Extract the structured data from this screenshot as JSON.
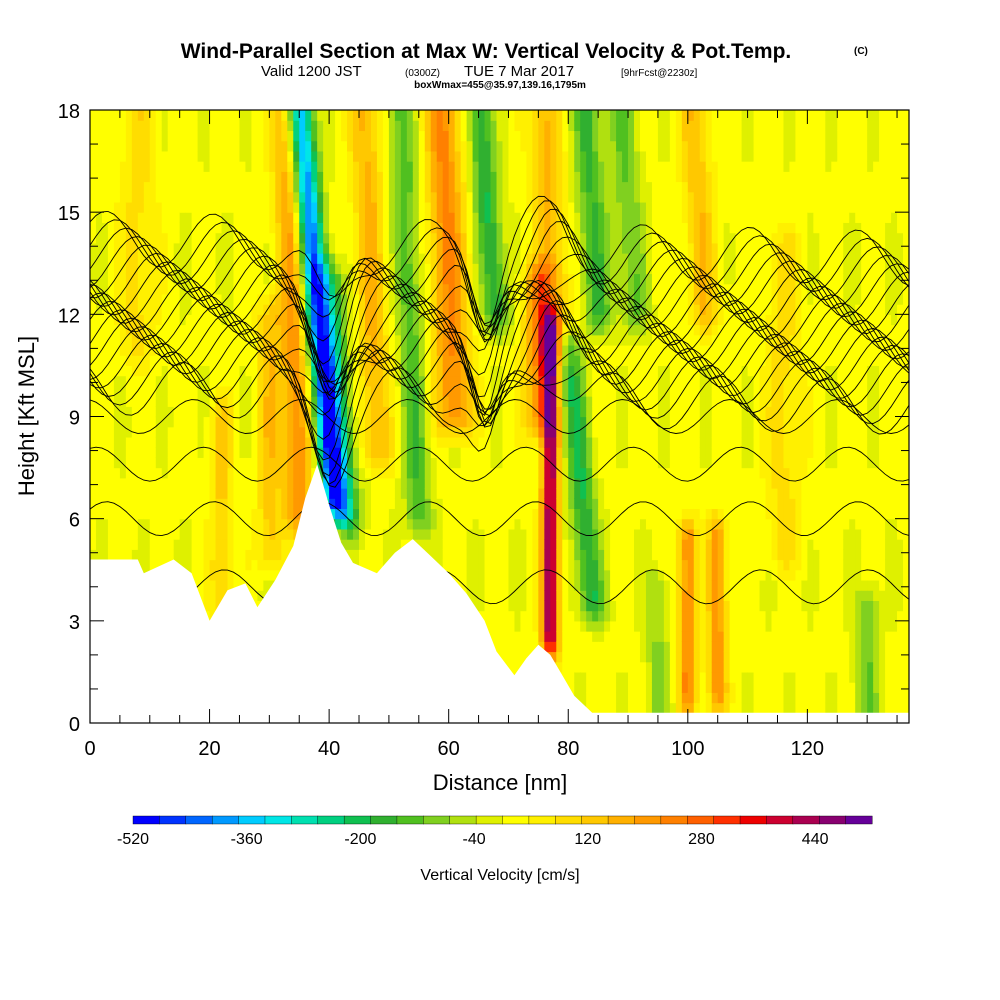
{
  "header": {
    "title": "Wind-Parallel Section at Max W: Vertical Velocity & Pot.Temp.",
    "copyright": "(C)",
    "valid_prefix": "Valid 1200 JST",
    "valid_zulu": "(0300Z)",
    "valid_date": "TUE 7 Mar 2017",
    "forecast": "[9hrFcst@2230z]",
    "box_info": "boxWmax=455@35.97,139.16,1795m"
  },
  "chart_data": {
    "type": "heatmap",
    "xlabel": "Distance [nm]",
    "ylabel": "Height [Kft MSL]",
    "xlim": [
      0,
      137
    ],
    "ylim": [
      0,
      18
    ],
    "xticks": [
      0,
      20,
      40,
      60,
      80,
      100,
      120
    ],
    "yticks": [
      0,
      3,
      6,
      9,
      12,
      15,
      18
    ],
    "colorbar": {
      "label": "Vertical Velocity [cm/s]",
      "min": -520,
      "max": 520,
      "step": 40,
      "tick_values": [
        -520,
        -360,
        -200,
        -40,
        120,
        280,
        440
      ],
      "colors": [
        "#0000ff",
        "#0033ff",
        "#0066ff",
        "#0099ff",
        "#00ccff",
        "#00e6e6",
        "#00e0b0",
        "#00d080",
        "#10c050",
        "#30b030",
        "#50c020",
        "#80d020",
        "#b0e010",
        "#dff000",
        "#ffff00",
        "#fff000",
        "#ffdd00",
        "#ffc800",
        "#ffb000",
        "#ff9900",
        "#ff8000",
        "#ff6000",
        "#ff3000",
        "#ee0000",
        "#cc0030",
        "#aa0050",
        "#880070",
        "#660099"
      ]
    },
    "terrain_top_kft": [
      [
        0,
        4.8
      ],
      [
        8,
        4.8
      ],
      [
        9,
        4.4
      ],
      [
        14,
        4.8
      ],
      [
        17,
        4.4
      ],
      [
        20,
        3.0
      ],
      [
        23,
        3.9
      ],
      [
        26,
        4.1
      ],
      [
        28,
        3.4
      ],
      [
        31,
        4.2
      ],
      [
        34,
        5.2
      ],
      [
        36,
        6.6
      ],
      [
        38,
        7.6
      ],
      [
        40,
        6.4
      ],
      [
        42,
        5.3
      ],
      [
        44,
        4.7
      ],
      [
        48,
        4.4
      ],
      [
        51,
        5.0
      ],
      [
        54,
        5.4
      ],
      [
        57,
        4.9
      ],
      [
        60,
        4.4
      ],
      [
        63,
        3.8
      ],
      [
        66,
        3.0
      ],
      [
        68,
        2.1
      ],
      [
        71,
        1.4
      ],
      [
        73,
        1.9
      ],
      [
        75,
        2.3
      ],
      [
        77,
        2.0
      ],
      [
        79,
        1.4
      ],
      [
        81,
        0.8
      ],
      [
        84,
        0.3
      ],
      [
        137,
        0.3
      ]
    ],
    "w_features": [
      {
        "x": 41,
        "y0": 6.5,
        "y1": 18,
        "tilt": -6,
        "w": -450,
        "width": 2.2
      },
      {
        "x": 43,
        "y0": 6,
        "y1": 13,
        "tilt": -3,
        "w": -180,
        "width": 2.5
      },
      {
        "x": 35,
        "y0": 6,
        "y1": 18,
        "tilt": -2,
        "w": 200,
        "width": 2.5
      },
      {
        "x": 48,
        "y0": 8,
        "y1": 18,
        "tilt": -2,
        "w": 150,
        "width": 2.5
      },
      {
        "x": 55,
        "y0": 6,
        "y1": 18,
        "tilt": -3,
        "w": -150,
        "width": 2.2
      },
      {
        "x": 61,
        "y0": 9,
        "y1": 18,
        "tilt": -2,
        "w": 220,
        "width": 3.0
      },
      {
        "x": 68,
        "y0": 12,
        "y1": 18,
        "tilt": -3,
        "w": -200,
        "width": 2.2
      },
      {
        "x": 77,
        "y0": 2.5,
        "y1": 11.5,
        "tilt": 0,
        "w": 450,
        "width": 1.4
      },
      {
        "x": 75,
        "y0": 9,
        "y1": 13,
        "tilt": 0,
        "w": 200,
        "width": 2.5
      },
      {
        "x": 84,
        "y0": 3.5,
        "y1": 11,
        "tilt": -4,
        "w": -200,
        "width": 2.2
      },
      {
        "x": 85,
        "y0": 12,
        "y1": 18,
        "tilt": -2,
        "w": -160,
        "width": 2.5
      },
      {
        "x": 78,
        "y0": 11,
        "y1": 18,
        "tilt": -2,
        "w": 150,
        "width": 2.5
      },
      {
        "x": 91,
        "y0": 12,
        "y1": 18,
        "tilt": -2,
        "w": -120,
        "width": 2.5
      },
      {
        "x": 100,
        "y0": 0.8,
        "y1": 5.5,
        "tilt": 0,
        "w": 220,
        "width": 1.6
      },
      {
        "x": 105,
        "y0": 0.8,
        "y1": 5.5,
        "tilt": 0,
        "w": 200,
        "width": 1.6
      },
      {
        "x": 103,
        "y0": 12,
        "y1": 18,
        "tilt": -2,
        "w": 130,
        "width": 2.5
      },
      {
        "x": 130,
        "y0": 0.5,
        "y1": 3.5,
        "tilt": 0,
        "w": -120,
        "width": 2.0
      },
      {
        "x": 22,
        "y0": 3.5,
        "y1": 9,
        "tilt": 0,
        "w": 110,
        "width": 1.8
      },
      {
        "x": 30,
        "y0": 5,
        "y1": 12,
        "tilt": 0,
        "w": 120,
        "width": 2.0
      },
      {
        "x": 8,
        "y0": 11,
        "y1": 18,
        "tilt": 0,
        "w": 80,
        "width": 3.0
      },
      {
        "x": 95,
        "y0": 0.5,
        "y1": 4,
        "tilt": 0,
        "w": -90,
        "width": 2.0
      },
      {
        "x": 116,
        "y0": 5,
        "y1": 14,
        "tilt": 0,
        "w": 80,
        "width": 3.0
      }
    ]
  }
}
